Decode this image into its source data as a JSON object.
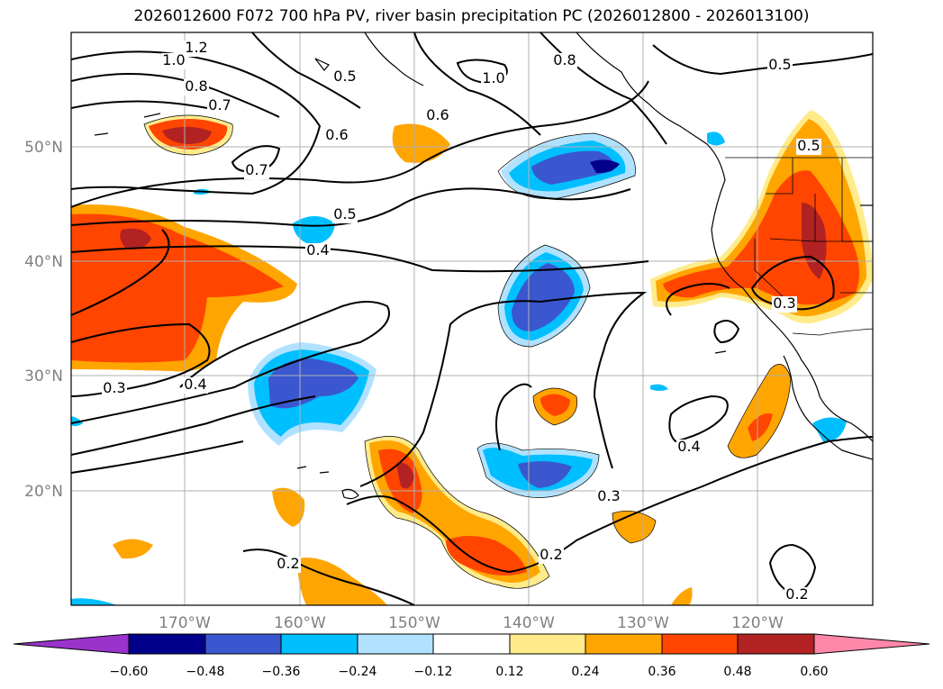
{
  "title": "2026012600 F072 700 hPa PV, river basin precipitation PC (2026012800 - 2026013100)",
  "axes": {
    "lon_ticks": [
      "170°W",
      "160°W",
      "150°W",
      "140°W",
      "130°W",
      "120°W"
    ],
    "lat_ticks": [
      "50°N",
      "40°N",
      "30°N",
      "20°N"
    ]
  },
  "colorbar": {
    "tick_labels": [
      "−0.60",
      "−0.48",
      "−0.36",
      "−0.24",
      "−0.12",
      "0.12",
      "0.24",
      "0.36",
      "0.48",
      "0.60"
    ],
    "colors": [
      "#9933cc",
      "#00008b",
      "#3a57cf",
      "#00bfff",
      "#b0e2ff",
      "#ffffff",
      "#ffeb8a",
      "#ffa500",
      "#ff4500",
      "#b22222",
      "#ff88aa"
    ]
  },
  "contour_labels": [
    {
      "text": "1.2"
    },
    {
      "text": "1.0"
    },
    {
      "text": "0.8"
    },
    {
      "text": "0.7"
    },
    {
      "text": "0.5"
    },
    {
      "text": "0.6"
    },
    {
      "text": "0.7"
    },
    {
      "text": "1.0"
    },
    {
      "text": "0.8"
    },
    {
      "text": "0.6"
    },
    {
      "text": "0.5"
    },
    {
      "text": "0.5"
    },
    {
      "text": "0.4"
    },
    {
      "text": "0.5"
    },
    {
      "text": "0.3"
    },
    {
      "text": "0.4"
    },
    {
      "text": "0.3"
    },
    {
      "text": "0.4"
    },
    {
      "text": "0.3"
    },
    {
      "text": "0.2"
    },
    {
      "text": "0.2"
    },
    {
      "text": "0.2"
    }
  ]
}
